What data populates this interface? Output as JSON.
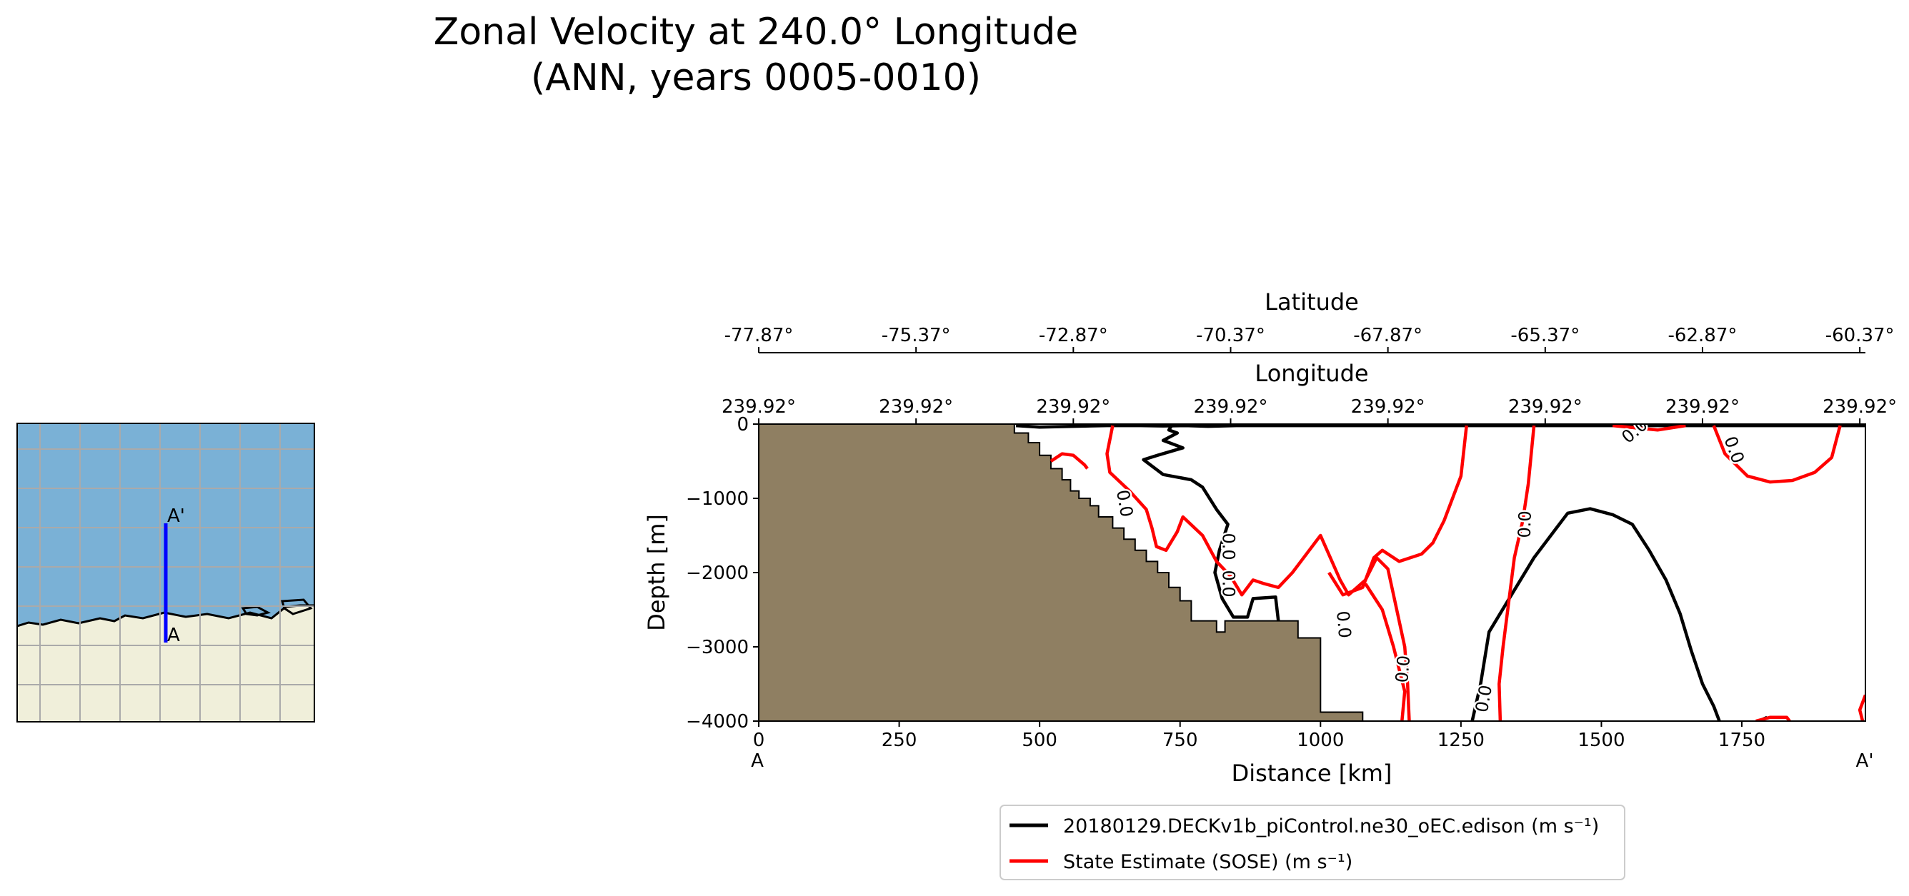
{
  "title_line1": "Zonal Velocity at 240.0° Longitude",
  "title_line2": "(ANN, years 0005-0010)",
  "colors": {
    "model": "#000000",
    "obs": "#ff0000",
    "land": "#8f7f62",
    "map_ocean": "#7ab1d6",
    "map_land": "#f0efda",
    "transect": "#0000ff"
  },
  "inset_map": {
    "label_start": "A",
    "label_end": "A'"
  },
  "chart_data": {
    "type": "line",
    "subtype": "contour-section",
    "xlabel": "Distance [km]",
    "ylabel": "Depth [m]",
    "xlim": [
      0,
      1970
    ],
    "ylim": [
      -4000,
      0
    ],
    "xticks": [
      {
        "v": 0,
        "label": "0"
      },
      {
        "v": 250,
        "label": "250"
      },
      {
        "v": 500,
        "label": "500"
      },
      {
        "v": 750,
        "label": "750"
      },
      {
        "v": 1000,
        "label": "1000"
      },
      {
        "v": 1250,
        "label": "1250"
      },
      {
        "v": 1500,
        "label": "1500"
      },
      {
        "v": 1750,
        "label": "1750"
      }
    ],
    "yticks": [
      {
        "v": 0,
        "label": "0"
      },
      {
        "v": -1000,
        "label": "−1000"
      },
      {
        "v": -2000,
        "label": "−2000"
      },
      {
        "v": -3000,
        "label": "−3000"
      },
      {
        "v": -4000,
        "label": "−4000"
      }
    ],
    "x_end_labels": {
      "start": "A",
      "end": "A'"
    },
    "latitude_axis": {
      "label": "Latitude",
      "ticks": [
        {
          "v": 0,
          "label": "-77.87°"
        },
        {
          "v": 280,
          "label": "-75.37°"
        },
        {
          "v": 560,
          "label": "-72.87°"
        },
        {
          "v": 840,
          "label": "-70.37°"
        },
        {
          "v": 1120,
          "label": "-67.87°"
        },
        {
          "v": 1400,
          "label": "-65.37°"
        },
        {
          "v": 1680,
          "label": "-62.87°"
        },
        {
          "v": 1960,
          "label": "-60.37°"
        }
      ]
    },
    "longitude_axis": {
      "label": "Longitude",
      "ticks": [
        {
          "v": 0,
          "label": "239.92°"
        },
        {
          "v": 280,
          "label": "239.92°"
        },
        {
          "v": 560,
          "label": "239.92°"
        },
        {
          "v": 840,
          "label": "239.92°"
        },
        {
          "v": 1120,
          "label": "239.92°"
        },
        {
          "v": 1400,
          "label": "239.92°"
        },
        {
          "v": 1680,
          "label": "239.92°"
        },
        {
          "v": 1960,
          "label": "239.92°"
        }
      ]
    },
    "bathymetry": [
      [
        0,
        0
      ],
      [
        455,
        0
      ],
      [
        455,
        -120
      ],
      [
        480,
        -120
      ],
      [
        480,
        -250
      ],
      [
        500,
        -250
      ],
      [
        500,
        -420
      ],
      [
        520,
        -420
      ],
      [
        520,
        -600
      ],
      [
        540,
        -600
      ],
      [
        540,
        -750
      ],
      [
        555,
        -750
      ],
      [
        555,
        -900
      ],
      [
        570,
        -900
      ],
      [
        570,
        -1000
      ],
      [
        590,
        -1000
      ],
      [
        590,
        -1100
      ],
      [
        605,
        -1100
      ],
      [
        605,
        -1250
      ],
      [
        630,
        -1250
      ],
      [
        630,
        -1400
      ],
      [
        650,
        -1400
      ],
      [
        650,
        -1550
      ],
      [
        670,
        -1550
      ],
      [
        670,
        -1700
      ],
      [
        690,
        -1700
      ],
      [
        690,
        -1850
      ],
      [
        710,
        -1850
      ],
      [
        710,
        -2000
      ],
      [
        730,
        -2000
      ],
      [
        730,
        -2200
      ],
      [
        750,
        -2200
      ],
      [
        750,
        -2380
      ],
      [
        770,
        -2380
      ],
      [
        770,
        -2650
      ],
      [
        815,
        -2650
      ],
      [
        815,
        -2800
      ],
      [
        830,
        -2800
      ],
      [
        830,
        -2650
      ],
      [
        960,
        -2650
      ],
      [
        960,
        -2880
      ],
      [
        1000,
        -2880
      ],
      [
        1000,
        -3880
      ],
      [
        1075,
        -3880
      ],
      [
        1075,
        -4000
      ],
      [
        0,
        -4000
      ]
    ],
    "series": [
      {
        "name": "20180129.DECKv1b_piControl.ne30_oEC.edison (m s⁻¹)",
        "color": "#000000",
        "contour_level": "0.0",
        "segments": [
          [
            [
              458,
              -20
            ],
            [
              500,
              -40
            ],
            [
              560,
              -30
            ],
            [
              620,
              -20
            ],
            [
              680,
              -20
            ],
            [
              720,
              -25
            ],
            [
              760,
              -20
            ],
            [
              800,
              -30
            ],
            [
              850,
              -20
            ],
            [
              900,
              -20
            ],
            [
              950,
              -20
            ],
            [
              1970,
              -20
            ]
          ],
          [
            [
              735,
              -20
            ],
            [
              730,
              -80
            ],
            [
              745,
              -120
            ],
            [
              720,
              -220
            ],
            [
              755,
              -320
            ],
            [
              710,
              -420
            ],
            [
              685,
              -480
            ],
            [
              720,
              -680
            ],
            [
              770,
              -750
            ],
            [
              790,
              -850
            ],
            [
              815,
              -1150
            ],
            [
              835,
              -1350
            ],
            [
              820,
              -1700
            ],
            [
              812,
              -2000
            ],
            [
              825,
              -2350
            ],
            [
              845,
              -2600
            ],
            [
              870,
              -2600
            ],
            [
              880,
              -2350
            ],
            [
              920,
              -2330
            ],
            [
              925,
              -2650
            ]
          ],
          [
            [
              1270,
              -4000
            ],
            [
              1285,
              -3500
            ],
            [
              1300,
              -2800
            ],
            [
              1340,
              -2300
            ],
            [
              1380,
              -1800
            ],
            [
              1420,
              -1400
            ],
            [
              1440,
              -1200
            ],
            [
              1480,
              -1140
            ],
            [
              1520,
              -1220
            ],
            [
              1555,
              -1350
            ],
            [
              1585,
              -1700
            ],
            [
              1615,
              -2100
            ],
            [
              1640,
              -2550
            ],
            [
              1660,
              -3050
            ],
            [
              1680,
              -3500
            ],
            [
              1700,
              -3800
            ],
            [
              1710,
              -4000
            ]
          ],
          [
            [
              1780,
              -4000
            ],
            [
              1795,
              -3950
            ]
          ]
        ]
      },
      {
        "name": "State Estimate (SOSE) (m s⁻¹)",
        "color": "#ff0000",
        "contour_level": "0.0",
        "segments": [
          [
            [
              630,
              -20
            ],
            [
              620,
              -400
            ],
            [
              625,
              -650
            ],
            [
              660,
              -900
            ],
            [
              690,
              -1150
            ],
            [
              700,
              -1400
            ],
            [
              708,
              -1650
            ],
            [
              725,
              -1700
            ],
            [
              745,
              -1450
            ],
            [
              755,
              -1250
            ],
            [
              790,
              -1500
            ],
            [
              815,
              -1850
            ],
            [
              840,
              -2050
            ],
            [
              860,
              -2300
            ],
            [
              880,
              -2100
            ],
            [
              900,
              -2150
            ],
            [
              925,
              -2200
            ],
            [
              950,
              -2000
            ],
            [
              970,
              -1800
            ],
            [
              990,
              -1600
            ],
            [
              1000,
              -1500
            ],
            [
              1035,
              -2100
            ],
            [
              1050,
              -2300
            ],
            [
              1080,
              -2100
            ],
            [
              1100,
              -1800
            ],
            [
              1120,
              -1950
            ],
            [
              1130,
              -2300
            ],
            [
              1150,
              -3000
            ],
            [
              1155,
              -3500
            ],
            [
              1158,
              -4000
            ]
          ],
          [
            [
              1145,
              -4000
            ],
            [
              1150,
              -3600
            ],
            [
              1130,
              -3000
            ],
            [
              1110,
              -2500
            ],
            [
              1080,
              -2150
            ]
          ],
          [
            [
              1260,
              -20
            ],
            [
              1250,
              -700
            ],
            [
              1220,
              -1300
            ],
            [
              1200,
              -1600
            ],
            [
              1180,
              -1750
            ],
            [
              1140,
              -1850
            ],
            [
              1110,
              -1700
            ],
            [
              1095,
              -1800
            ],
            [
              1075,
              -2200
            ],
            [
              1040,
              -2300
            ],
            [
              1015,
              -2000
            ]
          ],
          [
            [
              520,
              -500
            ],
            [
              540,
              -400
            ],
            [
              560,
              -420
            ],
            [
              580,
              -550
            ],
            [
              585,
              -600
            ]
          ],
          [
            [
              1320,
              -4000
            ],
            [
              1318,
              -3500
            ],
            [
              1325,
              -3000
            ],
            [
              1335,
              -2400
            ],
            [
              1345,
              -1800
            ],
            [
              1360,
              -1300
            ],
            [
              1370,
              -800
            ],
            [
              1380,
              -20
            ]
          ],
          [
            [
              1520,
              -20
            ],
            [
              1600,
              -80
            ],
            [
              1650,
              -20
            ]
          ],
          [
            [
              1700,
              -20
            ],
            [
              1720,
              -400
            ],
            [
              1760,
              -700
            ],
            [
              1800,
              -780
            ],
            [
              1840,
              -760
            ],
            [
              1880,
              -650
            ],
            [
              1910,
              -450
            ],
            [
              1925,
              -20
            ]
          ],
          [
            [
              1775,
              -4000
            ],
            [
              1800,
              -3950
            ],
            [
              1830,
              -3950
            ],
            [
              1835,
              -4000
            ]
          ],
          [
            [
              1970,
              -3650
            ],
            [
              1960,
              -3850
            ],
            [
              1965,
              -4000
            ]
          ]
        ]
      }
    ],
    "contour_labels": [
      {
        "text": "0.0",
        "x": 835,
        "y": -1650,
        "series": 0,
        "angle": 90
      },
      {
        "text": "0.0",
        "x": 1292,
        "y": -3700,
        "series": 0,
        "angle": -80
      },
      {
        "text": "0.0",
        "x": 650,
        "y": -1070,
        "series": 1,
        "angle": 80
      },
      {
        "text": "0.0",
        "x": 835,
        "y": -2150,
        "series": 1,
        "angle": 90
      },
      {
        "text": "0.0",
        "x": 1040,
        "y": -2700,
        "series": 1,
        "angle": 85
      },
      {
        "text": "0.0",
        "x": 1148,
        "y": -3300,
        "series": 1,
        "angle": -85
      },
      {
        "text": "0.0",
        "x": 1365,
        "y": -1350,
        "series": 1,
        "angle": -88
      },
      {
        "text": "0.0",
        "x": 1560,
        "y": -100,
        "series": 1,
        "angle": -40
      },
      {
        "text": "0.0",
        "x": 1735,
        "y": -350,
        "series": 1,
        "angle": 70
      }
    ]
  }
}
